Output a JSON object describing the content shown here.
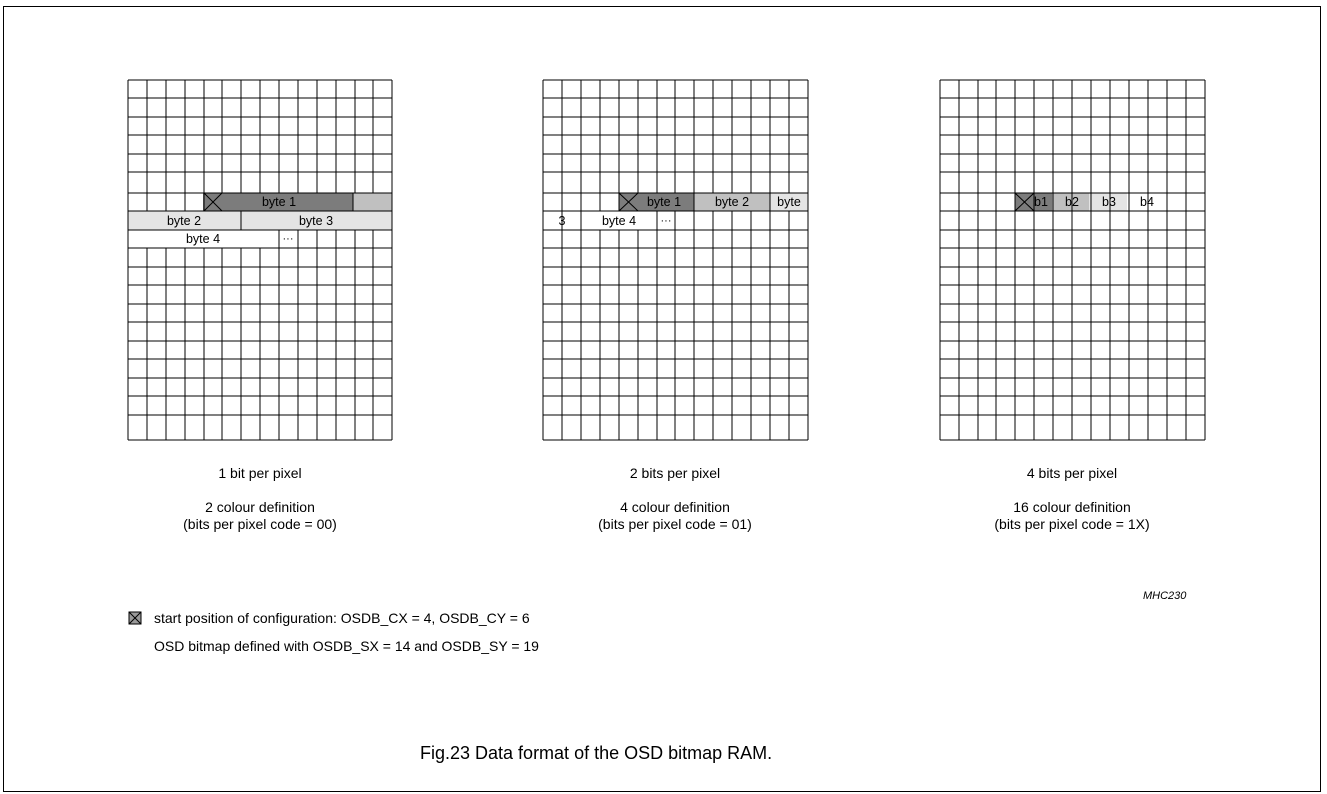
{
  "panels": [
    {
      "caption": "1 bit per pixel",
      "colour_definition": "2 colour definition",
      "code_note": "(bits per pixel code = 00)",
      "labels": [
        "byte 1",
        "byte 2",
        "byte 3",
        "byte 4",
        "···"
      ]
    },
    {
      "caption": "2 bits per pixel",
      "colour_definition": "4 colour definition",
      "code_note": "(bits per pixel code = 01)",
      "labels": [
        "byte 1",
        "byte 2",
        "byte",
        "3",
        "byte 4",
        "···"
      ]
    },
    {
      "caption": "4 bits per pixel",
      "colour_definition": "16 colour definition",
      "code_note": "(bits per pixel code = 1X)",
      "labels": [
        "b1",
        "b2",
        "b3",
        "b4"
      ]
    }
  ],
  "reference": "MHC230",
  "legend": {
    "start_position": "start position of configuration:  OSDB_CX = 4,  OSDB_CY = 6",
    "bitmap_defined": "OSD bitmap defined with OSDB_SX = 14 and OSDB_SY = 19"
  },
  "figure_caption": "Fig.23  Data format of the OSD bitmap RAM.",
  "colors": {
    "dark": "#7c7c7c",
    "medium": "#c0c0c0",
    "light": "#e4e4e4"
  }
}
